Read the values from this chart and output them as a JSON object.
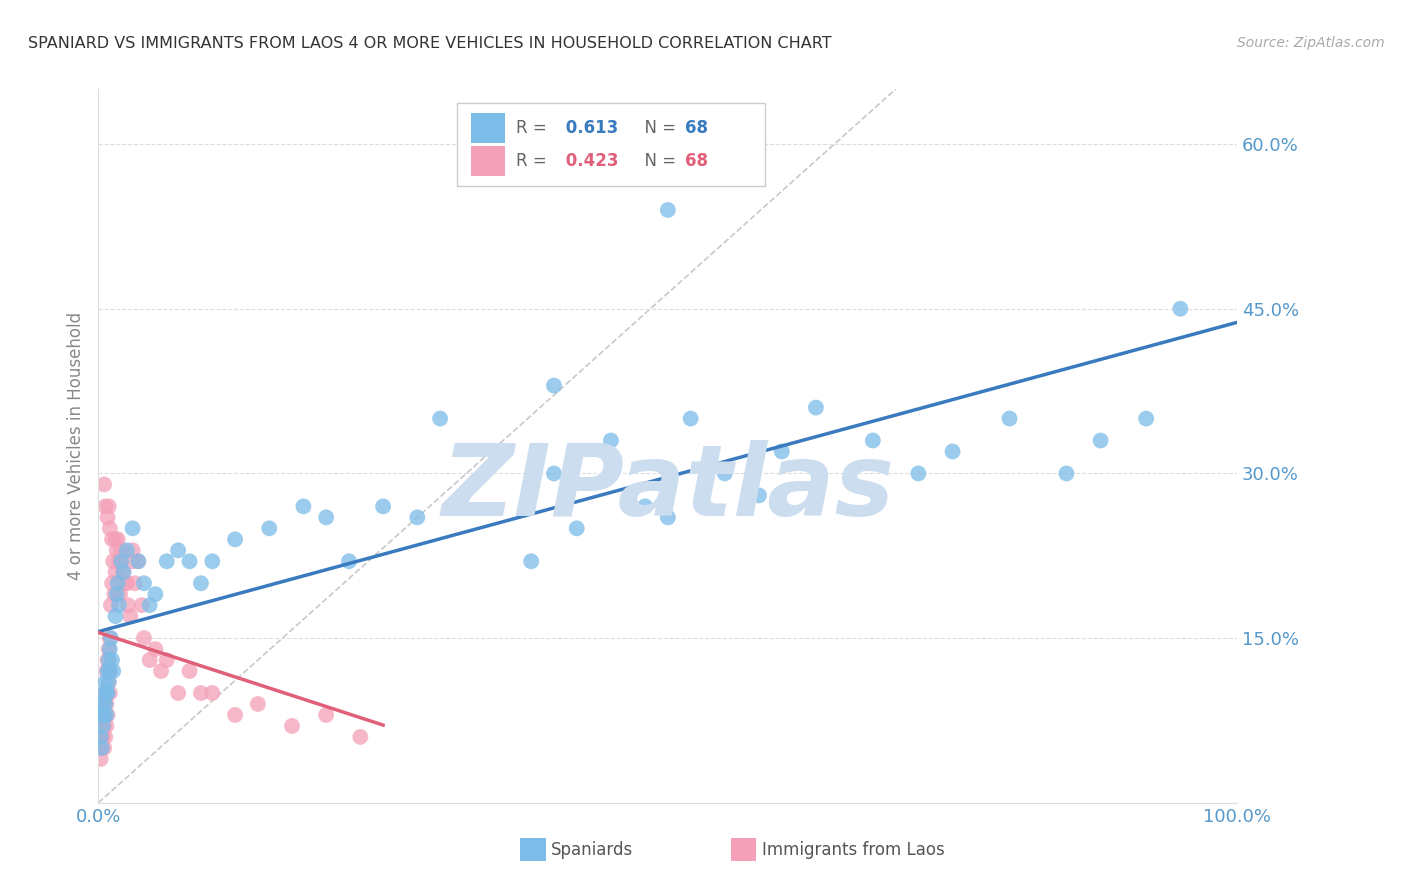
{
  "title": "SPANIARD VS IMMIGRANTS FROM LAOS 4 OR MORE VEHICLES IN HOUSEHOLD CORRELATION CHART",
  "source": "Source: ZipAtlas.com",
  "ylabel": "4 or more Vehicles in Household",
  "xmin": 0.0,
  "xmax": 1.0,
  "ymin": 0.0,
  "ymax": 0.65,
  "yticks": [
    0.0,
    0.15,
    0.3,
    0.45,
    0.6
  ],
  "ytick_labels": [
    "",
    "15.0%",
    "30.0%",
    "45.0%",
    "60.0%"
  ],
  "xticks": [
    0.0,
    0.1,
    0.2,
    0.3,
    0.4,
    0.5,
    0.6,
    0.7,
    0.8,
    0.9,
    1.0
  ],
  "xtick_labels": [
    "0.0%",
    "",
    "",
    "",
    "",
    "",
    "",
    "",
    "",
    "",
    "100.0%"
  ],
  "spaniards_R": 0.613,
  "spaniards_N": 68,
  "laos_R": 0.423,
  "laos_N": 68,
  "spaniard_color": "#7bbce8",
  "laos_color": "#f4a0b8",
  "spaniard_line_color": "#3a7abf",
  "laos_line_color": "#e0607a",
  "ref_line_color": "#bbbbbb",
  "watermark_color": "#ccddef",
  "background_color": "#ffffff",
  "grid_color": "#dddddd",
  "title_color": "#333333",
  "tick_color": "#5599cc",
  "spaniards_x": [
    0.002,
    0.003,
    0.003,
    0.004,
    0.004,
    0.005,
    0.005,
    0.006,
    0.006,
    0.007,
    0.007,
    0.008,
    0.008,
    0.009,
    0.009,
    0.01,
    0.01,
    0.011,
    0.012,
    0.013,
    0.015,
    0.016,
    0.017,
    0.018,
    0.02,
    0.022,
    0.025,
    0.03,
    0.035,
    0.04,
    0.045,
    0.05,
    0.06,
    0.07,
    0.08,
    0.09,
    0.1,
    0.12,
    0.15,
    0.18,
    0.2,
    0.22,
    0.25,
    0.28,
    0.3,
    0.32,
    0.35,
    0.38,
    0.4,
    0.42,
    0.45,
    0.48,
    0.5,
    0.52,
    0.55,
    0.58,
    0.6,
    0.63,
    0.68,
    0.72,
    0.75,
    0.8,
    0.85,
    0.88,
    0.92,
    0.95,
    0.5,
    0.4
  ],
  "spaniards_y": [
    0.06,
    0.05,
    0.08,
    0.07,
    0.09,
    0.1,
    0.08,
    0.09,
    0.11,
    0.1,
    0.08,
    0.12,
    0.1,
    0.13,
    0.11,
    0.12,
    0.14,
    0.15,
    0.13,
    0.12,
    0.17,
    0.19,
    0.2,
    0.18,
    0.22,
    0.21,
    0.23,
    0.25,
    0.22,
    0.2,
    0.18,
    0.19,
    0.22,
    0.23,
    0.22,
    0.2,
    0.22,
    0.24,
    0.25,
    0.27,
    0.26,
    0.22,
    0.27,
    0.26,
    0.35,
    0.28,
    0.32,
    0.22,
    0.3,
    0.25,
    0.33,
    0.27,
    0.26,
    0.35,
    0.3,
    0.28,
    0.32,
    0.36,
    0.33,
    0.3,
    0.32,
    0.35,
    0.3,
    0.33,
    0.35,
    0.45,
    0.54,
    0.38
  ],
  "laos_x": [
    0.001,
    0.002,
    0.002,
    0.003,
    0.003,
    0.003,
    0.004,
    0.004,
    0.004,
    0.005,
    0.005,
    0.005,
    0.006,
    0.006,
    0.006,
    0.007,
    0.007,
    0.007,
    0.008,
    0.008,
    0.008,
    0.009,
    0.009,
    0.01,
    0.01,
    0.01,
    0.011,
    0.012,
    0.013,
    0.014,
    0.015,
    0.016,
    0.017,
    0.018,
    0.019,
    0.02,
    0.022,
    0.024,
    0.026,
    0.028,
    0.03,
    0.032,
    0.035,
    0.038,
    0.04,
    0.045,
    0.05,
    0.055,
    0.06,
    0.07,
    0.08,
    0.09,
    0.1,
    0.12,
    0.14,
    0.17,
    0.2,
    0.23,
    0.008,
    0.012,
    0.005,
    0.006,
    0.009,
    0.01,
    0.015,
    0.02,
    0.025,
    0.03
  ],
  "laos_y": [
    0.05,
    0.04,
    0.06,
    0.05,
    0.07,
    0.06,
    0.08,
    0.06,
    0.07,
    0.09,
    0.07,
    0.05,
    0.1,
    0.08,
    0.06,
    0.12,
    0.09,
    0.07,
    0.13,
    0.1,
    0.08,
    0.14,
    0.11,
    0.15,
    0.12,
    0.1,
    0.18,
    0.2,
    0.22,
    0.19,
    0.21,
    0.23,
    0.24,
    0.22,
    0.19,
    0.22,
    0.21,
    0.2,
    0.18,
    0.17,
    0.23,
    0.2,
    0.22,
    0.18,
    0.15,
    0.13,
    0.14,
    0.12,
    0.13,
    0.1,
    0.12,
    0.1,
    0.1,
    0.08,
    0.09,
    0.07,
    0.08,
    0.06,
    0.26,
    0.24,
    0.29,
    0.27,
    0.27,
    0.25,
    0.24,
    0.23,
    0.2,
    0.22
  ]
}
